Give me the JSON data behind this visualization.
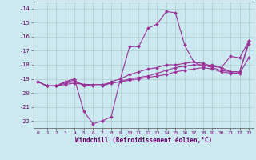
{
  "xlabel": "Windchill (Refroidissement éolien,°C)",
  "background_color": "#cce8f0",
  "grid_color": "#aacccc",
  "line_color": "#993399",
  "x": [
    0,
    1,
    2,
    3,
    4,
    5,
    6,
    7,
    8,
    9,
    10,
    11,
    12,
    13,
    14,
    15,
    16,
    17,
    18,
    19,
    20,
    21,
    22,
    23
  ],
  "line1": [
    -19.2,
    -19.5,
    -19.5,
    -19.2,
    -19.0,
    -21.3,
    -22.2,
    -22.0,
    -21.7,
    -19.0,
    -16.7,
    -16.7,
    -15.4,
    -15.1,
    -14.2,
    -14.3,
    -16.6,
    -17.8,
    -18.1,
    -18.0,
    -18.2,
    -18.5,
    -18.5,
    -16.3
  ],
  "line2": [
    -19.2,
    -19.5,
    -19.5,
    -19.2,
    -19.1,
    -19.5,
    -19.5,
    -19.5,
    -19.2,
    -19.0,
    -18.7,
    -18.5,
    -18.3,
    -18.2,
    -18.0,
    -18.0,
    -17.9,
    -17.8,
    -17.9,
    -18.1,
    -18.2,
    -17.4,
    -17.5,
    -16.3
  ],
  "line3": [
    -19.2,
    -19.5,
    -19.5,
    -19.3,
    -19.2,
    -19.4,
    -19.5,
    -19.5,
    -19.3,
    -19.2,
    -19.0,
    -18.9,
    -18.8,
    -18.6,
    -18.4,
    -18.2,
    -18.1,
    -18.0,
    -18.0,
    -18.2,
    -18.4,
    -18.5,
    -18.5,
    -16.5
  ],
  "line4": [
    -19.2,
    -19.5,
    -19.5,
    -19.4,
    -19.3,
    -19.4,
    -19.4,
    -19.4,
    -19.3,
    -19.2,
    -19.1,
    -19.0,
    -18.9,
    -18.8,
    -18.7,
    -18.5,
    -18.4,
    -18.3,
    -18.2,
    -18.3,
    -18.5,
    -18.6,
    -18.6,
    -17.5
  ],
  "ylim": [
    -22.5,
    -13.5
  ],
  "yticks": [
    -22,
    -21,
    -20,
    -19,
    -18,
    -17,
    -16,
    -15,
    -14
  ],
  "xlim": [
    -0.5,
    23.5
  ]
}
